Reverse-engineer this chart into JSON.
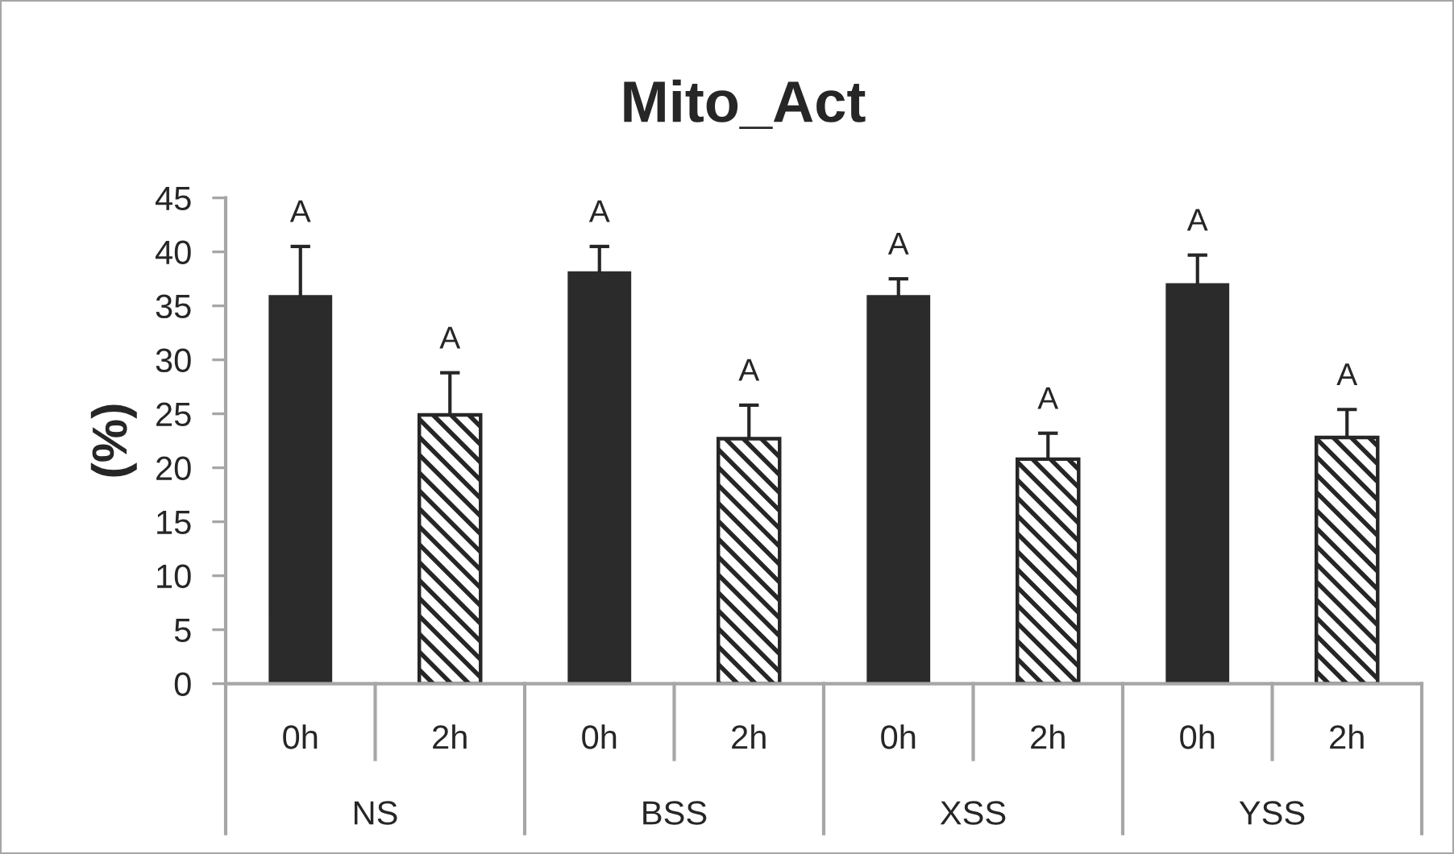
{
  "chart_data": {
    "type": "bar",
    "title": "Mito_Act",
    "ylabel": "(%)",
    "categories": [
      "NS",
      "BSS",
      "XSS",
      "YSS"
    ],
    "series": [
      {
        "name": "0h",
        "color": "#2b2b2b",
        "values": [
          35.9,
          38.1,
          35.9,
          37.0
        ],
        "errors": [
          [
            35.9,
            40.5
          ],
          [
            38.1,
            40.5
          ],
          [
            35.9,
            37.5
          ],
          [
            37.0,
            39.7
          ]
        ],
        "value_labels": [
          "A",
          "A",
          "A",
          "A"
        ]
      },
      {
        "name": "2h",
        "color": "#262626",
        "values": [
          24.9,
          22.7,
          20.8,
          22.8
        ],
        "errors": [
          [
            24.9,
            28.8
          ],
          [
            22.7,
            25.8
          ],
          [
            20.8,
            23.2
          ],
          [
            22.8,
            25.4
          ]
        ],
        "value_labels": [
          "A",
          "A",
          "A",
          "A"
        ]
      }
    ],
    "ylim": [
      0,
      45
    ],
    "yticks": [
      0,
      5,
      10,
      15,
      20,
      25,
      30,
      35,
      40,
      45
    ],
    "grid": false
  }
}
